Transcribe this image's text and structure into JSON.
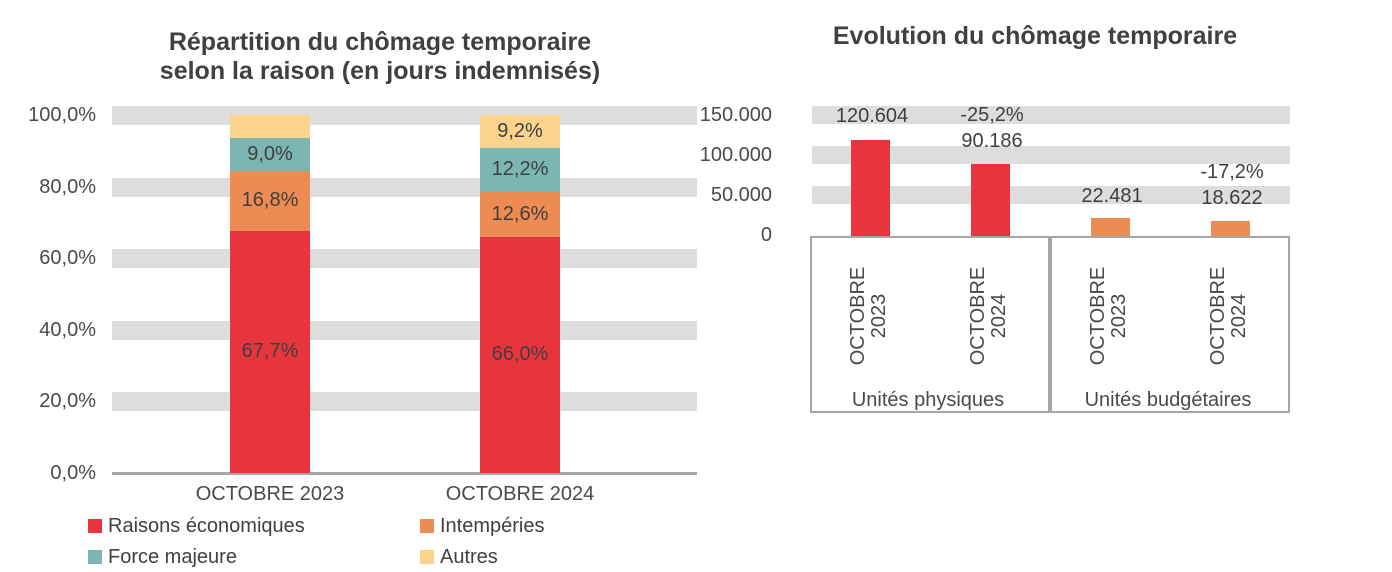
{
  "colors": {
    "red": "#E8353D",
    "orange": "#ED8C52",
    "teal": "#7BB6B2",
    "yellow": "#FAD38C",
    "band": "#DDDDDD",
    "axis": "#A6A6A6",
    "text": "#404040"
  },
  "chart_data": [
    {
      "type": "bar",
      "stacked": true,
      "unit": "percent",
      "title": "Répartition du chômage temporaire\nselon la raison (en jours indemnisés)",
      "categories": [
        "OCTOBRE 2023",
        "OCTOBRE 2024"
      ],
      "series": [
        {
          "name": "Raisons économiques",
          "color": "#E8353D",
          "values": [
            67.7,
            66.0
          ],
          "labels": [
            "67,7%",
            "66,0%"
          ]
        },
        {
          "name": "Intempéries",
          "color": "#ED8C52",
          "values": [
            16.8,
            12.6
          ],
          "labels": [
            "16,8%",
            "12,6%"
          ]
        },
        {
          "name": "Force majeure",
          "color": "#7BB6B2",
          "values": [
            9.0,
            12.2
          ],
          "labels": [
            "9,0%",
            "12,2%"
          ]
        },
        {
          "name": "Autres",
          "color": "#FAD38C",
          "values": [
            6.5,
            9.2
          ],
          "labels": [
            "",
            "9,2%"
          ]
        }
      ],
      "y_ticks": [
        "100,0%",
        "80,0%",
        "60,0%",
        "40,0%",
        "20,0%",
        "0,0%"
      ],
      "ylim": [
        0,
        100
      ],
      "grid": "horizontal-bands",
      "legend_position": "bottom"
    },
    {
      "type": "bar",
      "title": "Evolution du chômage temporaire",
      "groups": [
        {
          "label": "Unités physiques",
          "color": "#E8353D",
          "bars": [
            {
              "category": "OCTOBRE\n2023",
              "value": 120604,
              "value_label": "120.604"
            },
            {
              "category": "OCTOBRE\n2024",
              "value": 90186,
              "value_label": "90.186",
              "change_label": "-25,2%"
            }
          ]
        },
        {
          "label": "Unités budgétaires",
          "color": "#ED8C52",
          "bars": [
            {
              "category": "OCTOBRE\n2023",
              "value": 22481,
              "value_label": "22.481"
            },
            {
              "category": "OCTOBRE\n2024",
              "value": 18622,
              "value_label": "18.622",
              "change_label": "-17,2%"
            }
          ]
        }
      ],
      "y_ticks": [
        "150.000",
        "100.000",
        "50.000",
        "0"
      ],
      "ylim": [
        0,
        150000
      ],
      "grid": "horizontal-bands",
      "legend_position": "none"
    }
  ]
}
